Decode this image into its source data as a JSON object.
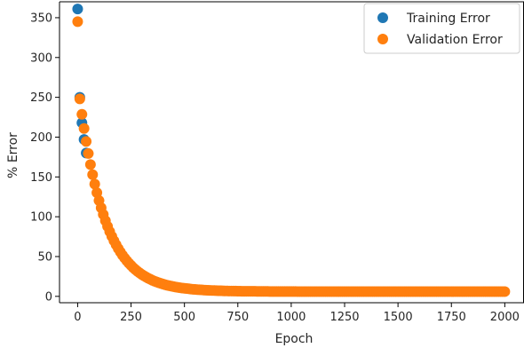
{
  "chart_data": {
    "type": "scatter",
    "title": "",
    "xlabel": "Epoch",
    "ylabel": "% Error",
    "xlim": [
      -85,
      2090
    ],
    "ylim": [
      -8,
      370
    ],
    "xticks": [
      0,
      250,
      500,
      750,
      1000,
      1250,
      1500,
      1750,
      2000
    ],
    "yticks": [
      0,
      50,
      100,
      150,
      200,
      250,
      300,
      350
    ],
    "grid": false,
    "legend": {
      "position": "top-right"
    },
    "series": [
      {
        "name": "Training Error",
        "color": "#1f77b4",
        "x": [
          0,
          10,
          20,
          30,
          40
        ],
        "y": [
          361,
          250,
          218,
          197,
          180
        ]
      },
      {
        "name": "Validation Error",
        "color": "#ff7f0e",
        "curve": {
          "start_epoch": 0,
          "end_epoch": 2000,
          "step": 10,
          "initial": 345,
          "floor": 6,
          "decay_epochs": 120
        },
        "x": [],
        "y": []
      }
    ]
  }
}
